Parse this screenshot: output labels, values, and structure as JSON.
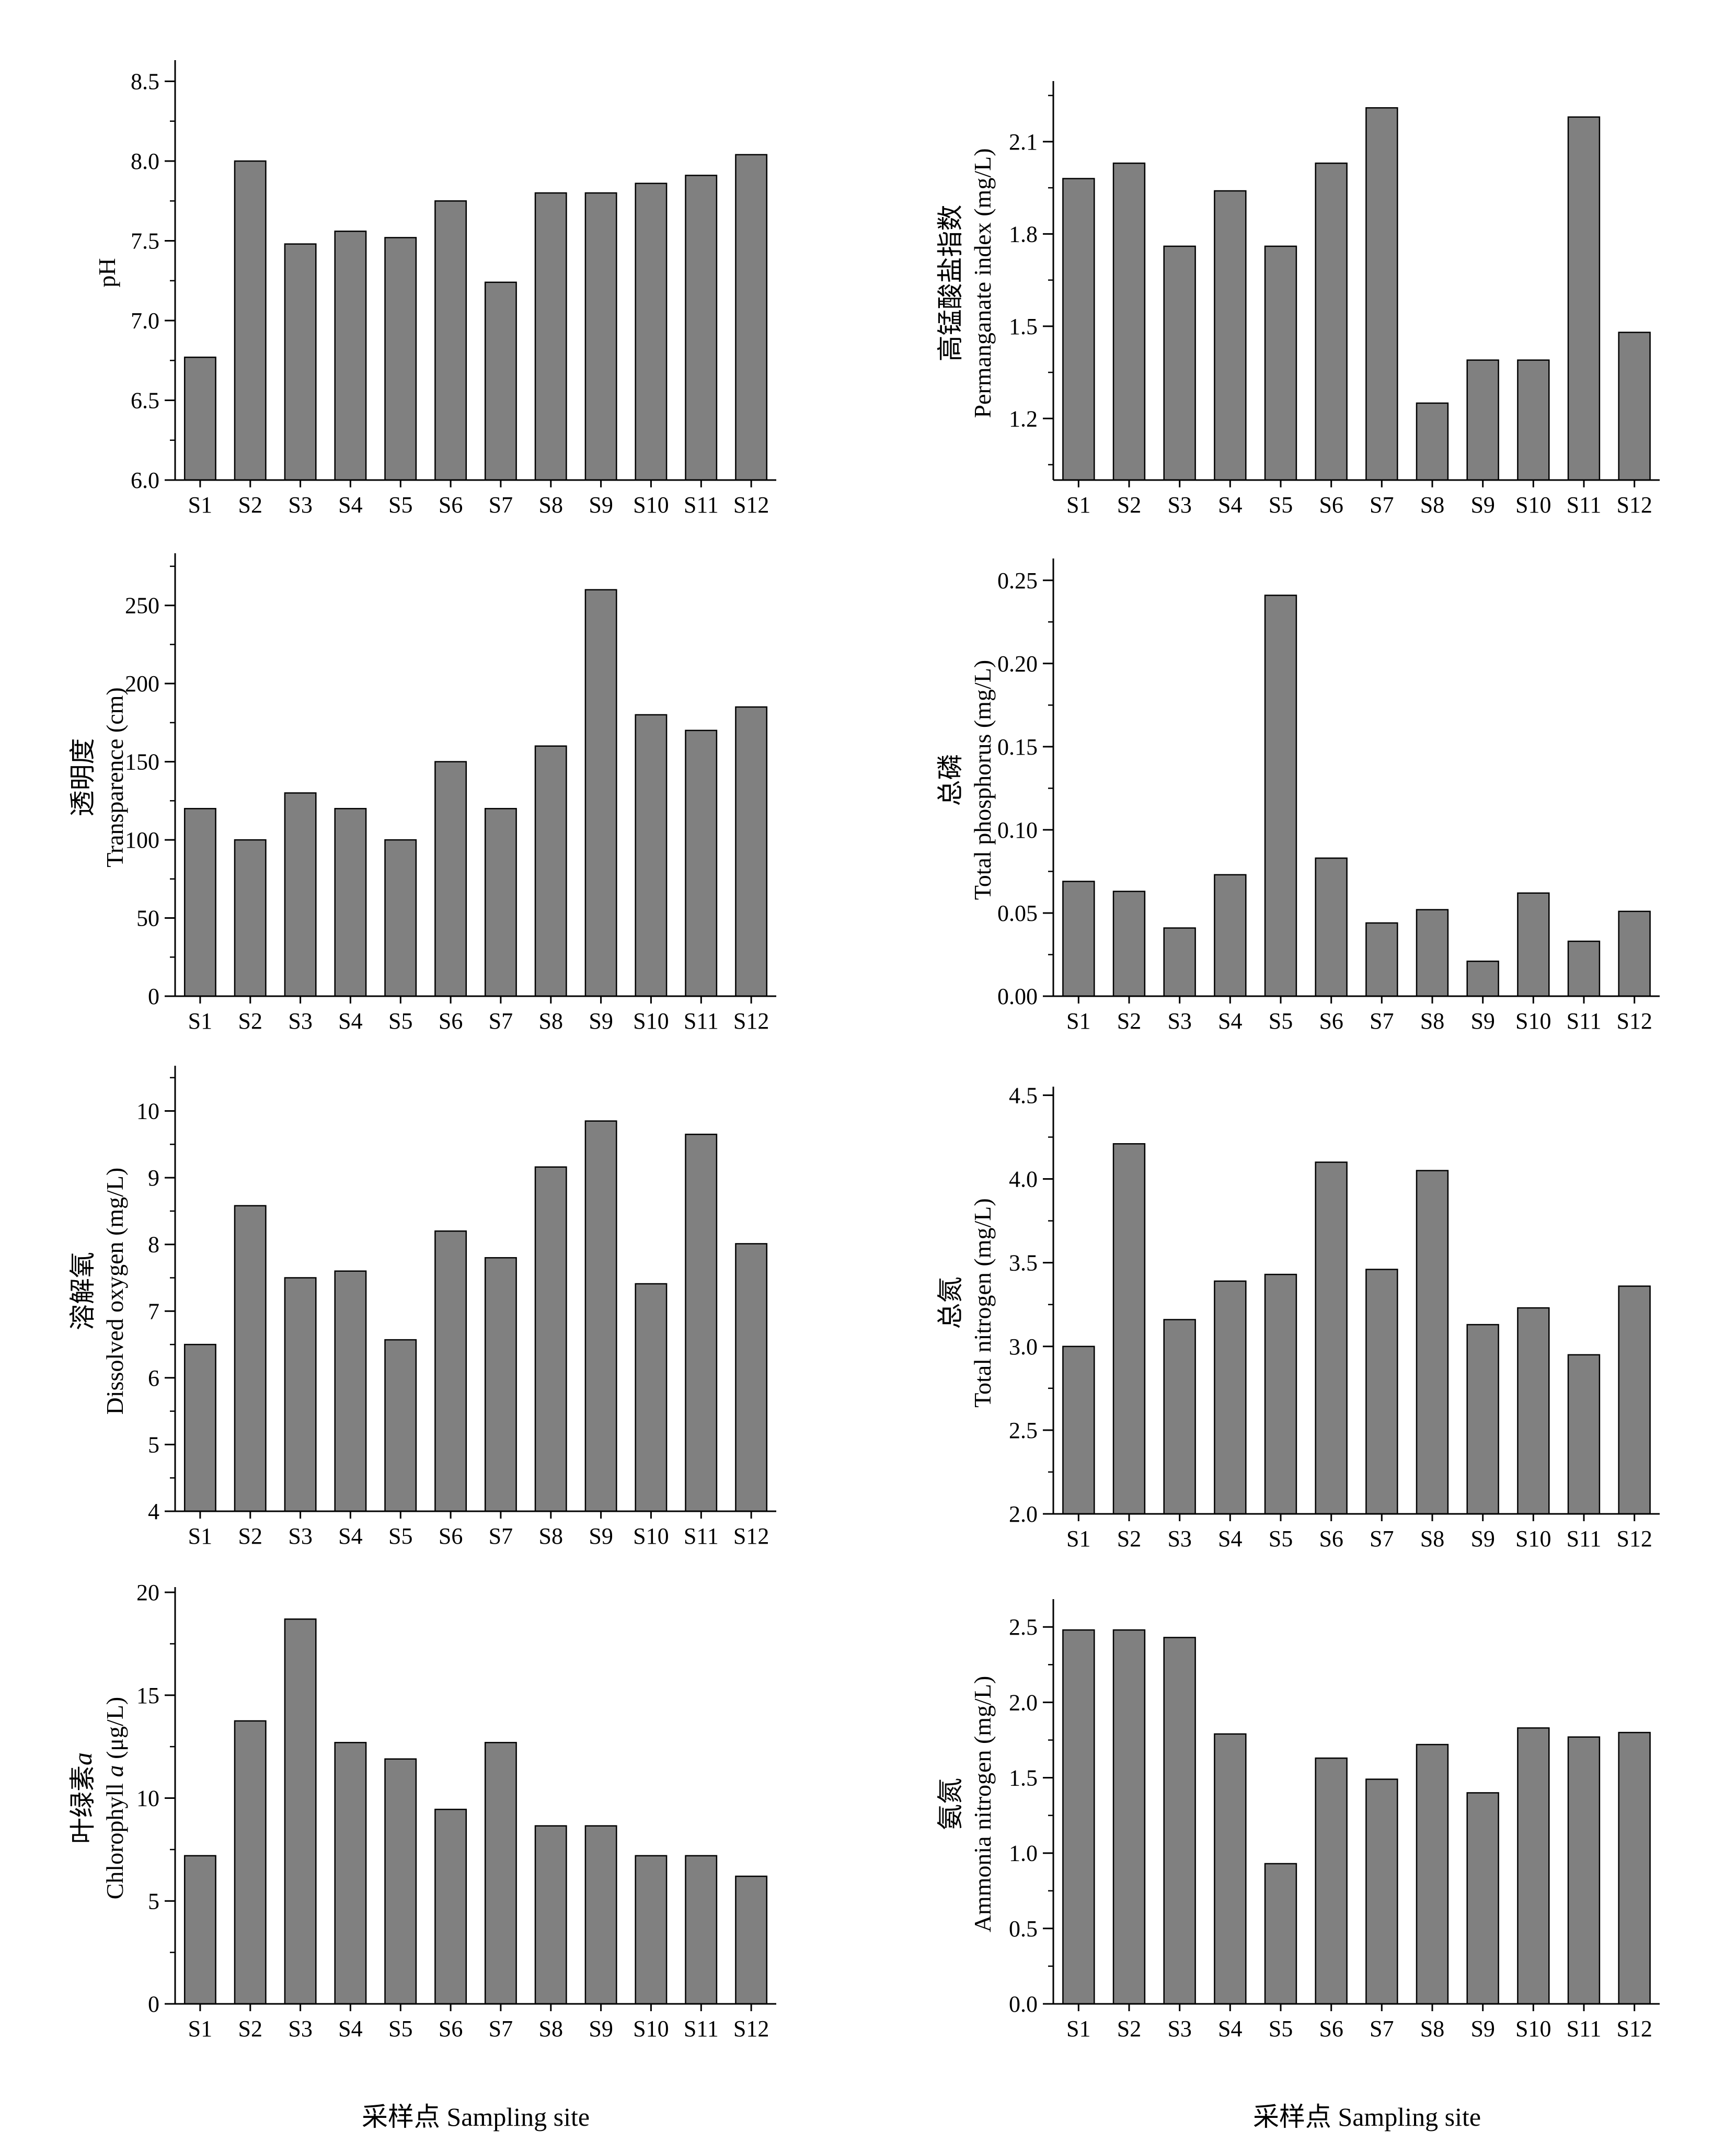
{
  "figure": {
    "left_xlabel": "采样点 Sampling site",
    "right_xlabel": "采样点 Sampling site",
    "bar_color": "#808080"
  },
  "chart_data": [
    {
      "type": "bar",
      "id": "ph",
      "ylabel_cn": "",
      "ylabel_en": "pH",
      "categories": [
        "S1",
        "S2",
        "S3",
        "S4",
        "S5",
        "S6",
        "S7",
        "S8",
        "S9",
        "S10",
        "S11",
        "S12"
      ],
      "values": [
        6.77,
        8.0,
        7.48,
        7.56,
        7.52,
        7.75,
        7.24,
        7.8,
        7.8,
        7.86,
        7.91,
        8.04
      ],
      "ylim": [
        6.0,
        8.6
      ],
      "yticks": [
        "6.0",
        "6.5",
        "7.0",
        "7.5",
        "8.0",
        "8.5"
      ],
      "minor_step": 0.25
    },
    {
      "type": "bar",
      "id": "permanganate",
      "ylabel_cn": "高锰酸盐指数",
      "ylabel_en": "Permanganate index (mg/L)",
      "categories": [
        "S1",
        "S2",
        "S3",
        "S4",
        "S5",
        "S6",
        "S7",
        "S8",
        "S9",
        "S10",
        "S11",
        "S12"
      ],
      "values": [
        1.98,
        2.03,
        1.76,
        1.94,
        1.76,
        2.03,
        2.21,
        1.25,
        1.39,
        1.39,
        2.18,
        1.48
      ],
      "ylim": [
        1.0,
        2.28
      ],
      "yticks": [
        "1.2",
        "1.5",
        "1.8",
        "2.1"
      ],
      "minor_step": 0.15
    },
    {
      "type": "bar",
      "id": "transparence",
      "ylabel_cn": "透明度",
      "ylabel_en": "Transparence (cm)",
      "categories": [
        "S1",
        "S2",
        "S3",
        "S4",
        "S5",
        "S6",
        "S7",
        "S8",
        "S9",
        "S10",
        "S11",
        "S12"
      ],
      "values": [
        120,
        100,
        130,
        120,
        100,
        150,
        120,
        160,
        260,
        180,
        170,
        185
      ],
      "ylim": [
        0,
        280
      ],
      "yticks": [
        "0",
        "50",
        "100",
        "150",
        "200",
        "250"
      ],
      "minor_step": 25
    },
    {
      "type": "bar",
      "id": "total-phosphorus",
      "ylabel_cn": "总磷",
      "ylabel_en": "Total phosphorus (mg/L)",
      "categories": [
        "S1",
        "S2",
        "S3",
        "S4",
        "S5",
        "S6",
        "S7",
        "S8",
        "S9",
        "S10",
        "S11",
        "S12"
      ],
      "values": [
        0.069,
        0.063,
        0.041,
        0.073,
        0.241,
        0.083,
        0.044,
        0.052,
        0.021,
        0.062,
        0.033,
        0.051
      ],
      "ylim": [
        0,
        0.26
      ],
      "yticks": [
        "0.00",
        "0.05",
        "0.10",
        "0.15",
        "0.20",
        "0.25"
      ],
      "minor_step": 0.025
    },
    {
      "type": "bar",
      "id": "dissolved-oxygen",
      "ylabel_cn": "溶解氧",
      "ylabel_en": "Dissolved oxygen (mg/L)",
      "categories": [
        "S1",
        "S2",
        "S3",
        "S4",
        "S5",
        "S6",
        "S7",
        "S8",
        "S9",
        "S10",
        "S11",
        "S12"
      ],
      "values": [
        6.5,
        8.58,
        7.5,
        7.6,
        6.57,
        8.2,
        7.8,
        9.16,
        9.85,
        7.41,
        9.65,
        8.01
      ],
      "ylim": [
        4,
        10.6
      ],
      "yticks": [
        "4",
        "5",
        "6",
        "7",
        "8",
        "9",
        "10"
      ],
      "minor_step": 0.5
    },
    {
      "type": "bar",
      "id": "total-nitrogen",
      "ylabel_cn": "总氮",
      "ylabel_en": "Total nitrogen (mg/L)",
      "categories": [
        "S1",
        "S2",
        "S3",
        "S4",
        "S5",
        "S6",
        "S7",
        "S8",
        "S9",
        "S10",
        "S11",
        "S12"
      ],
      "values": [
        3.0,
        4.21,
        3.16,
        3.39,
        3.43,
        4.1,
        3.46,
        4.05,
        3.13,
        3.23,
        2.95,
        3.36
      ],
      "ylim": [
        2.0,
        4.52
      ],
      "yticks": [
        "2.0",
        "2.5",
        "3.0",
        "3.5",
        "4.0",
        "4.5"
      ],
      "minor_step": 0.25
    },
    {
      "type": "bar",
      "id": "chlorophyll",
      "ylabel_cn": "叶绿素",
      "ylabel_cn_italic": "a",
      "ylabel_en": "Chlorophyll ",
      "ylabel_en_italic": "a",
      "ylabel_en_unit": " (μg/L)",
      "categories": [
        "S1",
        "S2",
        "S3",
        "S4",
        "S5",
        "S6",
        "S7",
        "S8",
        "S9",
        "S10",
        "S11",
        "S12"
      ],
      "values": [
        7.2,
        13.75,
        18.7,
        12.7,
        11.9,
        9.45,
        12.7,
        8.65,
        8.65,
        7.2,
        7.2,
        6.2
      ],
      "ylim": [
        0,
        20
      ],
      "yticks": [
        "0",
        "5",
        "10",
        "15",
        "20"
      ],
      "minor_step": 2.5
    },
    {
      "type": "bar",
      "id": "ammonia-nitrogen",
      "ylabel_cn": "氨氮",
      "ylabel_en": "Ammonia nitrogen (mg/L)",
      "categories": [
        "S1",
        "S2",
        "S3",
        "S4",
        "S5",
        "S6",
        "S7",
        "S8",
        "S9",
        "S10",
        "S11",
        "S12"
      ],
      "values": [
        2.48,
        2.48,
        2.43,
        1.79,
        0.93,
        1.63,
        1.49,
        1.72,
        1.4,
        1.83,
        1.77,
        1.8
      ],
      "ylim": [
        0,
        2.65
      ],
      "yticks": [
        "0.0",
        "0.5",
        "1.0",
        "1.5",
        "2.0",
        "2.5"
      ],
      "minor_step": 0.25
    }
  ]
}
